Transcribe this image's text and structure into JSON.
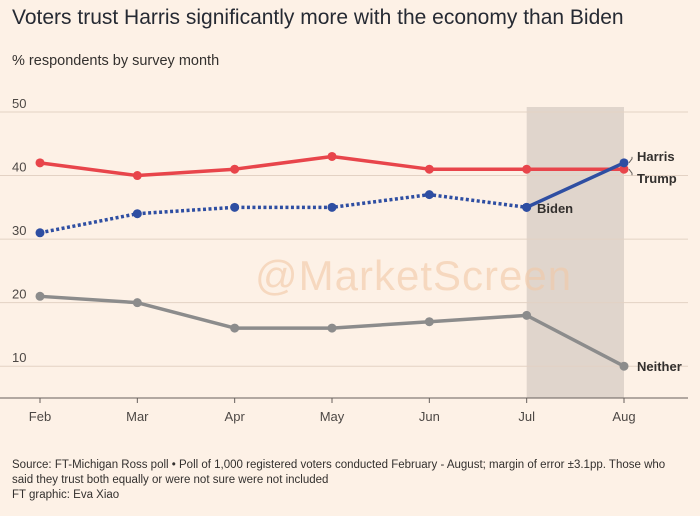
{
  "title": "Voters trust Harris significantly more with the economy than Biden",
  "subtitle": "% respondents by survey month",
  "watermark": "@MarketScreen",
  "chart_data": {
    "type": "line",
    "categories": [
      "Feb",
      "Mar",
      "Apr",
      "May",
      "Jun",
      "Jul",
      "Aug"
    ],
    "ylim": [
      5,
      50
    ],
    "yticks": [
      10,
      20,
      30,
      40,
      50
    ],
    "grid": true,
    "highlight_band": [
      "Jul",
      "Aug"
    ],
    "series": [
      {
        "name": "Trump",
        "color": "#e8454b",
        "style": "solid",
        "values": [
          42,
          40,
          41,
          43,
          41,
          41,
          41
        ]
      },
      {
        "name": "Biden",
        "color": "#2e4ea2",
        "style": "dotted",
        "values": [
          31,
          34,
          35,
          35,
          37,
          35,
          null
        ]
      },
      {
        "name": "Harris",
        "color": "#2e4ea2",
        "style": "solid",
        "values": [
          null,
          null,
          null,
          null,
          null,
          35,
          42
        ]
      },
      {
        "name": "Neither",
        "color": "#8c8c8c",
        "style": "solid",
        "values": [
          21,
          20,
          16,
          16,
          17,
          18,
          10
        ]
      }
    ]
  },
  "source": {
    "line1": "Source: FT-Michigan Ross poll • Poll of 1,000 registered voters conducted February - August; margin of error ±3.1pp. Those who said they trust both equally or were not sure were not included",
    "line2": "FT graphic: Eva Xiao"
  }
}
